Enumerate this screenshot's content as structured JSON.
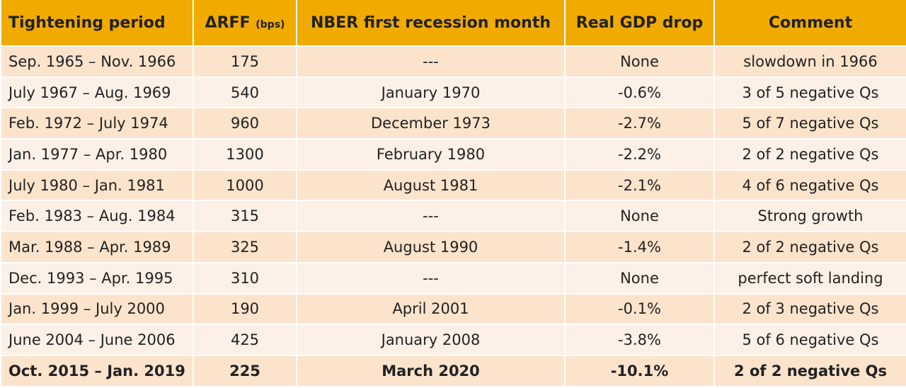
{
  "table": {
    "header": [
      "Tightening period",
      "ΔRFF",
      "NBER first recession month",
      "Real GDP drop",
      "Comment"
    ],
    "header_unit": "(bps)",
    "rows": [
      [
        "Sep. 1965 – Nov. 1966",
        175,
        "---",
        "None",
        "slowdown in 1966"
      ],
      [
        "July 1967 – Aug. 1969",
        540,
        "January 1970",
        "-0.6%",
        "3 of 5 negative Qs"
      ],
      [
        "Feb. 1972 – July 1974",
        960,
        "December 1973",
        "-2.7%",
        "5 of 7 negative Qs"
      ],
      [
        "Jan. 1977 – Apr. 1980",
        1300,
        "February 1980",
        "-2.2%",
        "2 of 2 negative Qs"
      ],
      [
        "July 1980 – Jan. 1981",
        1000,
        "August 1981",
        "-2.1%",
        "4 of 6 negative Qs"
      ],
      [
        "Feb. 1983 – Aug. 1984",
        315,
        "---",
        "None",
        "Strong growth"
      ],
      [
        "Mar. 1988 – Apr. 1989",
        325,
        "August 1990",
        "-1.4%",
        "2 of 2 negative Qs"
      ],
      [
        "Dec. 1993 – Apr. 1995",
        310,
        "---",
        "None",
        "perfect soft landing"
      ],
      [
        "Jan. 1999 – July 2000",
        190,
        "April 2001",
        "-0.1%",
        "2 of 3 negative Qs"
      ],
      [
        "June 2004 – June 2006",
        425,
        "January 2008",
        "-3.8%",
        "5 of 6 negative Qs"
      ],
      [
        "Oct. 2015 – Jan. 2019",
        225,
        "March 2020",
        "-10.1%",
        "2 of 2 negative Qs"
      ]
    ]
  }
}
